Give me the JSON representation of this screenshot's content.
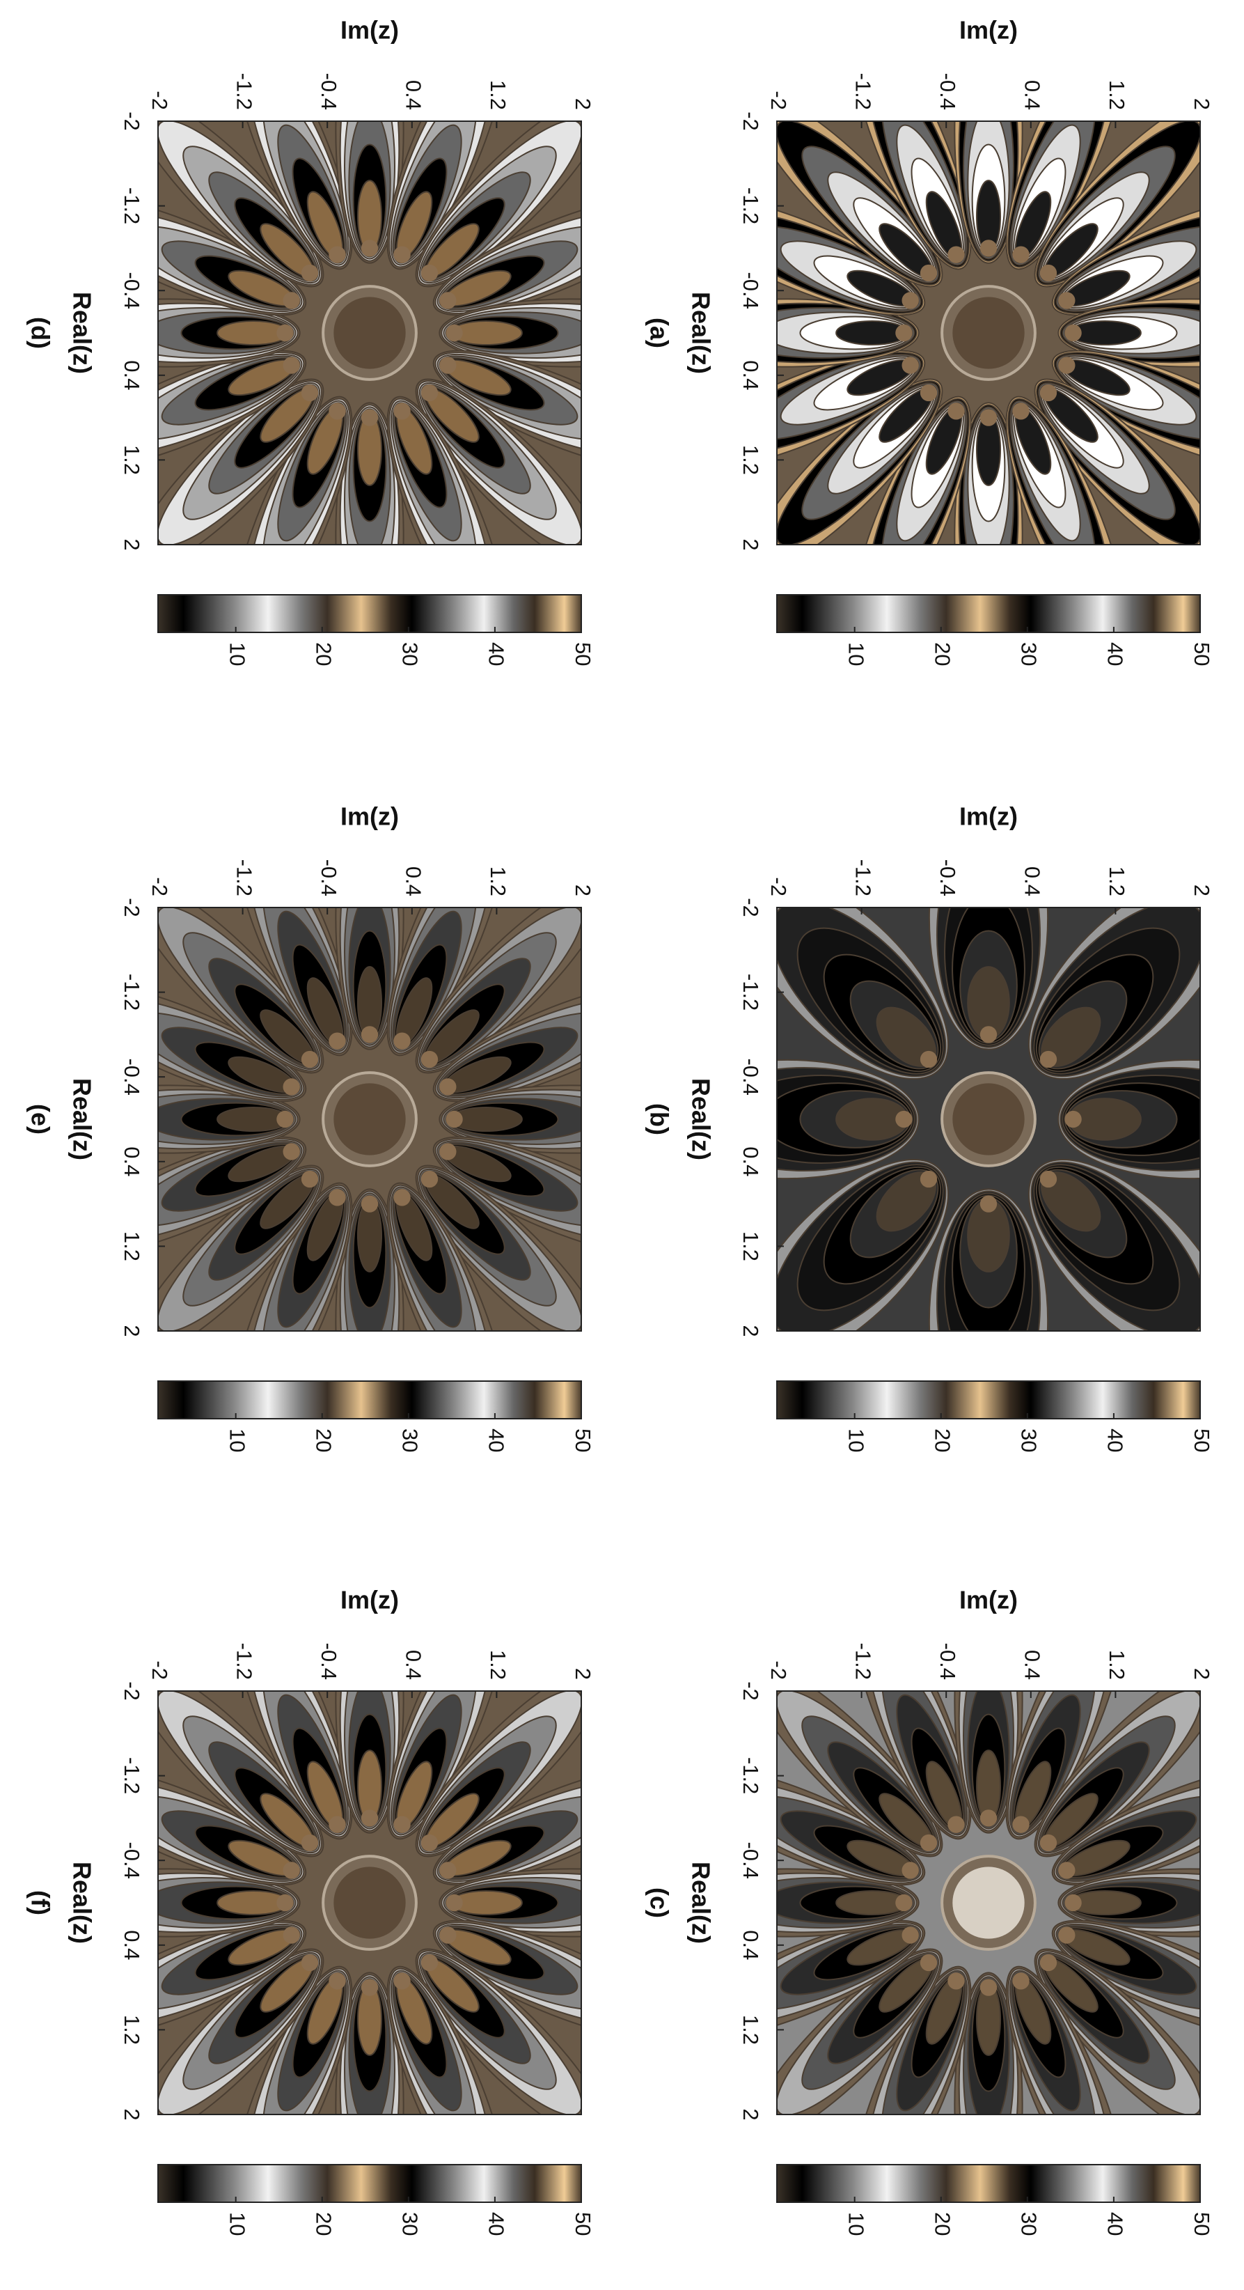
{
  "chart_data": [
    {
      "type": "image",
      "label": "(a)",
      "xlabel": "Real(z)",
      "ylabel": "Im(z)",
      "xlim": [
        -2,
        2
      ],
      "ylim": [
        -2,
        2
      ],
      "xticks": [
        -2,
        -1.2,
        -0.4,
        0.4,
        1.2,
        2
      ],
      "yticks": [
        -2,
        -1.2,
        -0.4,
        0.4,
        1.2,
        2
      ],
      "colorbar": {
        "lim": [
          1,
          50
        ],
        "ticks": [
          10,
          20,
          30,
          40,
          50
        ]
      }
    },
    {
      "type": "image",
      "label": "(b)",
      "xlabel": "Real(z)",
      "ylabel": "Im(z)",
      "xlim": [
        -2,
        2
      ],
      "ylim": [
        -2,
        2
      ],
      "xticks": [
        -2,
        -1.2,
        -0.4,
        0.4,
        1.2,
        2
      ],
      "yticks": [
        -2,
        -1.2,
        -0.4,
        0.4,
        1.2,
        2
      ],
      "colorbar": {
        "lim": [
          1,
          50
        ],
        "ticks": [
          10,
          20,
          30,
          40,
          50
        ]
      }
    },
    {
      "type": "image",
      "label": "(c)",
      "xlabel": "Real(z)",
      "ylabel": "Im(z)",
      "xlim": [
        -2,
        2
      ],
      "ylim": [
        -2,
        2
      ],
      "xticks": [
        -2,
        -1.2,
        -0.4,
        0.4,
        1.2,
        2
      ],
      "yticks": [
        -2,
        -1.2,
        -0.4,
        0.4,
        1.2,
        2
      ],
      "colorbar": {
        "lim": [
          1,
          50
        ],
        "ticks": [
          10,
          20,
          30,
          40,
          50
        ]
      }
    },
    {
      "type": "image",
      "label": "(d)",
      "xlabel": "Real(z)",
      "ylabel": "Im(z)",
      "xlim": [
        -2,
        2
      ],
      "ylim": [
        -2,
        2
      ],
      "xticks": [
        -2,
        -1.2,
        -0.4,
        0.4,
        1.2,
        2
      ],
      "yticks": [
        -2,
        -1.2,
        -0.4,
        0.4,
        1.2,
        2
      ],
      "colorbar": {
        "lim": [
          1,
          50
        ],
        "ticks": [
          10,
          20,
          30,
          40,
          50
        ]
      }
    },
    {
      "type": "image",
      "label": "(e)",
      "xlabel": "Real(z)",
      "ylabel": "Im(z)",
      "xlim": [
        -2,
        2
      ],
      "ylim": [
        -2,
        2
      ],
      "xticks": [
        -2,
        -1.2,
        -0.4,
        0.4,
        1.2,
        2
      ],
      "yticks": [
        -2,
        -1.2,
        -0.4,
        0.4,
        1.2,
        2
      ],
      "colorbar": {
        "lim": [
          1,
          50
        ],
        "ticks": [
          10,
          20,
          30,
          40,
          50
        ]
      }
    },
    {
      "type": "image",
      "label": "(f)",
      "xlabel": "Real(z)",
      "ylabel": "Im(z)",
      "xlim": [
        -2,
        2
      ],
      "ylim": [
        -2,
        2
      ],
      "xticks": [
        -2,
        -1.2,
        -0.4,
        0.4,
        1.2,
        2
      ],
      "yticks": [
        -2,
        -1.2,
        -0.4,
        0.4,
        1.2,
        2
      ],
      "colorbar": {
        "lim": [
          1,
          50
        ],
        "ticks": [
          10,
          20,
          30,
          40,
          50
        ]
      }
    }
  ]
}
